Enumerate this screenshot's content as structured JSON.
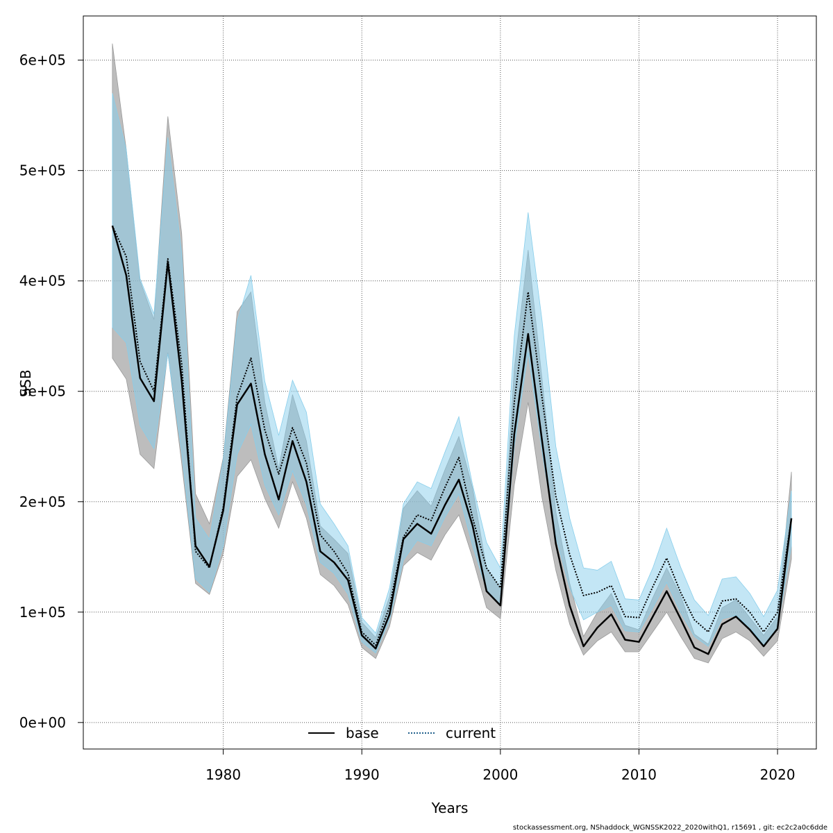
{
  "chart_data": {
    "type": "area",
    "title": "",
    "xlabel": "Years",
    "ylabel": "SSB",
    "xlim": [
      1969.9,
      2022.8
    ],
    "ylim": [
      -24000,
      640000
    ],
    "x_ticks": [
      1980,
      1990,
      2000,
      2010,
      2020
    ],
    "x_tick_labels": [
      "1980",
      "1990",
      "2000",
      "2010",
      "2020"
    ],
    "y_ticks": [
      0,
      100000,
      200000,
      300000,
      400000,
      500000,
      600000
    ],
    "y_tick_labels": [
      "0e+00",
      "1e+05",
      "2e+05",
      "3e+05",
      "4e+05",
      "5e+05",
      "6e+05"
    ],
    "grid": true,
    "legend_position": "bottom-center",
    "x": [
      1972,
      1973,
      1974,
      1975,
      1976,
      1977,
      1978,
      1979,
      1980,
      1981,
      1982,
      1983,
      1984,
      1985,
      1986,
      1987,
      1988,
      1989,
      1990,
      1991,
      1992,
      1993,
      1994,
      1995,
      1996,
      1997,
      1998,
      1999,
      2000,
      2001,
      2002,
      2003,
      2004,
      2005,
      2006,
      2007,
      2008,
      2009,
      2010,
      2011,
      2012,
      2013,
      2014,
      2015,
      2016,
      2017,
      2018,
      2019,
      2020,
      2021
    ],
    "series": [
      {
        "name": "base",
        "color": "#000000",
        "band_color": "#999999",
        "line_style": "solid",
        "values": [
          450000,
          405000,
          312000,
          291000,
          417000,
          310000,
          160000,
          141000,
          192000,
          288000,
          307000,
          243000,
          202000,
          255000,
          218000,
          155000,
          145000,
          129000,
          79000,
          67000,
          98000,
          166000,
          180000,
          171000,
          197000,
          220000,
          178000,
          119000,
          106000,
          261000,
          352000,
          256000,
          162000,
          106000,
          69000,
          86000,
          98000,
          75000,
          73000,
          96000,
          119000,
          94000,
          68000,
          62000,
          89000,
          96000,
          84000,
          69000,
          85000,
          185000
        ],
        "lower": [
          330000,
          311000,
          243000,
          230000,
          335000,
          235000,
          126000,
          116000,
          153000,
          223000,
          238000,
          203000,
          176000,
          218000,
          185000,
          134000,
          124000,
          107000,
          68000,
          58000,
          87000,
          142000,
          154000,
          147000,
          170000,
          188000,
          149000,
          104000,
          94000,
          215000,
          290000,
          204000,
          138000,
          89000,
          61000,
          74000,
          82000,
          64000,
          64000,
          82000,
          100000,
          78000,
          58000,
          54000,
          76000,
          82000,
          74000,
          60000,
          74000,
          148000
        ],
        "upper": [
          615000,
          519000,
          400000,
          365000,
          549000,
          443000,
          207000,
          180000,
          240000,
          372000,
          390000,
          290000,
          230000,
          297000,
          255000,
          178000,
          166000,
          153000,
          91000,
          77000,
          114000,
          194000,
          210000,
          196000,
          229000,
          259000,
          212000,
          140000,
          121000,
          320000,
          428000,
          312000,
          191000,
          126000,
          78000,
          100000,
          117000,
          88000,
          84000,
          113000,
          140000,
          115000,
          80000,
          71000,
          104000,
          111000,
          95000,
          79000,
          96000,
          227000
        ]
      },
      {
        "name": "current",
        "color": "#1f5f8b",
        "band_color": "#87ceeb",
        "line_style": "dotted",
        "values": [
          450000,
          422000,
          327000,
          300000,
          420000,
          325000,
          155000,
          140000,
          195000,
          295000,
          330000,
          265000,
          225000,
          267000,
          235000,
          170000,
          155000,
          135000,
          82000,
          70000,
          105000,
          168000,
          188000,
          183000,
          213000,
          240000,
          185000,
          140000,
          122000,
          290000,
          390000,
          295000,
          205000,
          152000,
          115000,
          118000,
          124000,
          96000,
          95000,
          123000,
          149000,
          118000,
          93000,
          82000,
          110000,
          112000,
          100000,
          82000,
          100000,
          185000
        ],
        "lower": [
          358000,
          344000,
          269000,
          248000,
          334000,
          245000,
          130000,
          118000,
          160000,
          243000,
          270000,
          215000,
          188000,
          228000,
          197000,
          145000,
          135000,
          116000,
          73000,
          63000,
          93000,
          147000,
          165000,
          160000,
          186000,
          207000,
          160000,
          120000,
          106000,
          250000,
          335000,
          246000,
          168000,
          122000,
          93000,
          100000,
          106000,
          83000,
          82000,
          104000,
          127000,
          100000,
          78000,
          69000,
          94000,
          97000,
          86000,
          70000,
          86000,
          160000
        ],
        "upper": [
          570000,
          519000,
          402000,
          370000,
          530000,
          425000,
          185000,
          166000,
          238000,
          363000,
          405000,
          309000,
          260000,
          310000,
          281000,
          198000,
          180000,
          160000,
          95000,
          81000,
          122000,
          198000,
          218000,
          212000,
          245000,
          277000,
          215000,
          163000,
          140000,
          350000,
          462000,
          365000,
          250000,
          185000,
          140000,
          138000,
          146000,
          112000,
          111000,
          140000,
          176000,
          141000,
          111000,
          97000,
          130000,
          132000,
          117000,
          96000,
          120000,
          210000
        ]
      }
    ]
  },
  "footer": "stockassessment.org, NShaddock_WGNSSK2022_2020withQ1, r15691 , git: ec2c2a0c6dde"
}
